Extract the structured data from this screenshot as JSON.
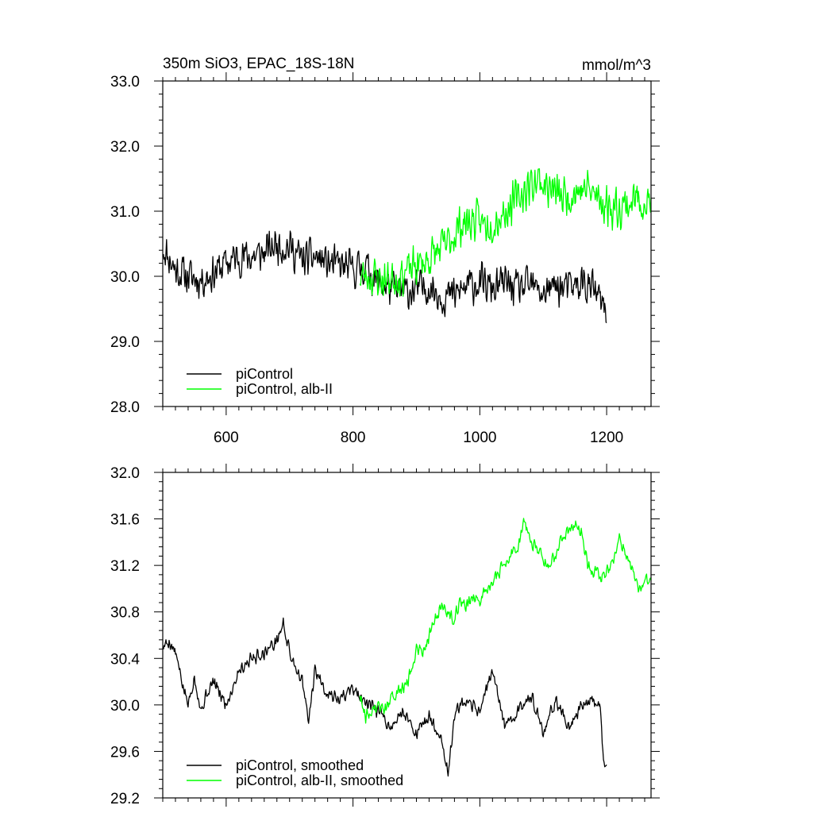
{
  "figure": {
    "title": "350m SiO3, EPAC_18S-18N",
    "units": "mmol/m^3"
  },
  "chart_data": [
    {
      "type": "line",
      "xlim": [
        500,
        1270
      ],
      "ylim": [
        28.0,
        33.0
      ],
      "x_ticks": [
        600,
        800,
        1000,
        1200
      ],
      "x_tick_labels": [
        "600",
        "800",
        "1000",
        "1200"
      ],
      "y_ticks": [
        28.0,
        29.0,
        30.0,
        31.0,
        32.0,
        33.0
      ],
      "y_tick_labels": [
        "28.0",
        "29.0",
        "30.0",
        "31.0",
        "32.0",
        "33.0"
      ],
      "grid": false,
      "legend_position": "bottom-left",
      "series": [
        {
          "name": "piControl",
          "color": "#000000",
          "x_range": [
            501,
            1200
          ],
          "anchors_x": [
            501,
            520,
            540,
            560,
            580,
            600,
            620,
            640,
            660,
            680,
            700,
            720,
            740,
            760,
            780,
            800,
            820,
            840,
            860,
            880,
            900,
            920,
            940,
            960,
            980,
            1000,
            1020,
            1040,
            1060,
            1080,
            1100,
            1120,
            1140,
            1160,
            1180,
            1200
          ],
          "anchors_mean": [
            30.45,
            30.1,
            30.0,
            29.95,
            30.05,
            30.2,
            30.3,
            30.3,
            30.35,
            30.5,
            30.45,
            30.25,
            30.3,
            30.2,
            30.15,
            30.1,
            30.15,
            29.9,
            29.8,
            29.75,
            29.8,
            29.85,
            29.7,
            29.7,
            29.85,
            29.9,
            29.8,
            29.9,
            29.8,
            29.85,
            29.75,
            29.85,
            29.8,
            29.9,
            29.8,
            29.4
          ],
          "noise": 0.35,
          "seed": 11
        },
        {
          "name": "piControl, alb-II",
          "color": "#00ff00",
          "x_range": [
            811,
            1270
          ],
          "anchors_x": [
            811,
            830,
            850,
            870,
            890,
            910,
            930,
            950,
            970,
            990,
            1010,
            1030,
            1050,
            1070,
            1090,
            1110,
            1130,
            1150,
            1170,
            1190,
            1210,
            1230,
            1250,
            1270
          ],
          "anchors_mean": [
            30.0,
            30.0,
            29.95,
            30.0,
            30.1,
            30.2,
            30.35,
            30.5,
            30.8,
            30.85,
            30.8,
            30.9,
            31.1,
            31.3,
            31.5,
            31.35,
            31.2,
            31.3,
            31.35,
            31.15,
            31.05,
            31.1,
            31.2,
            31.1
          ],
          "noise": 0.38,
          "seed": 23
        }
      ]
    },
    {
      "type": "line",
      "xlim": [
        500,
        1270
      ],
      "ylim": [
        29.2,
        32.0
      ],
      "x_ticks": [
        600,
        800,
        1000,
        1200
      ],
      "x_tick_labels": [],
      "y_ticks": [
        29.2,
        29.6,
        30.0,
        30.4,
        30.8,
        31.2,
        31.6,
        32.0
      ],
      "y_tick_labels": [
        "29.2",
        "29.6",
        "30.0",
        "30.4",
        "30.8",
        "31.2",
        "31.6",
        "32.0"
      ],
      "grid": false,
      "legend_position": "bottom-left",
      "series": [
        {
          "name": "piControl, smoothed",
          "color": "#000000",
          "x_range": [
            501,
            1200
          ],
          "anchors_x": [
            501,
            510,
            520,
            530,
            540,
            550,
            560,
            570,
            580,
            600,
            620,
            640,
            660,
            680,
            690,
            700,
            720,
            730,
            740,
            760,
            780,
            800,
            820,
            840,
            860,
            880,
            900,
            920,
            940,
            950,
            960,
            970,
            980,
            1000,
            1020,
            1040,
            1060,
            1080,
            1100,
            1120,
            1140,
            1160,
            1180,
            1190,
            1195,
            1200
          ],
          "anchors_mean": [
            30.5,
            30.55,
            30.45,
            30.2,
            30.0,
            30.25,
            29.95,
            30.1,
            30.2,
            30.0,
            30.3,
            30.4,
            30.45,
            30.55,
            30.7,
            30.45,
            30.2,
            29.85,
            30.3,
            30.1,
            30.05,
            30.15,
            30.0,
            29.95,
            29.8,
            29.95,
            29.75,
            29.9,
            29.7,
            29.4,
            29.9,
            30.0,
            30.0,
            29.95,
            30.3,
            29.8,
            29.95,
            30.1,
            29.75,
            30.05,
            29.8,
            30.0,
            30.05,
            30.0,
            29.5,
            29.45
          ],
          "noise": 0.07,
          "seed": 5
        },
        {
          "name": "piControl, alb-II, smoothed",
          "color": "#00ff00",
          "x_range": [
            811,
            1270
          ],
          "anchors_x": [
            811,
            820,
            830,
            840,
            850,
            860,
            870,
            880,
            890,
            900,
            910,
            920,
            930,
            940,
            950,
            960,
            970,
            980,
            990,
            1000,
            1010,
            1020,
            1030,
            1040,
            1050,
            1060,
            1070,
            1080,
            1090,
            1100,
            1110,
            1120,
            1130,
            1140,
            1150,
            1160,
            1170,
            1180,
            1190,
            1200,
            1210,
            1220,
            1230,
            1240,
            1250,
            1260,
            1270
          ],
          "anchors_mean": [
            30.1,
            29.9,
            29.95,
            30.0,
            29.95,
            30.05,
            30.1,
            30.15,
            30.25,
            30.5,
            30.45,
            30.6,
            30.75,
            30.85,
            30.8,
            30.75,
            30.9,
            30.85,
            30.95,
            30.9,
            31.0,
            31.05,
            31.15,
            31.2,
            31.3,
            31.35,
            31.6,
            31.4,
            31.35,
            31.25,
            31.2,
            31.3,
            31.45,
            31.5,
            31.55,
            31.5,
            31.2,
            31.15,
            31.1,
            31.15,
            31.2,
            31.45,
            31.3,
            31.15,
            31.0,
            31.05,
            31.1
          ],
          "noise": 0.07,
          "seed": 9
        }
      ]
    }
  ]
}
